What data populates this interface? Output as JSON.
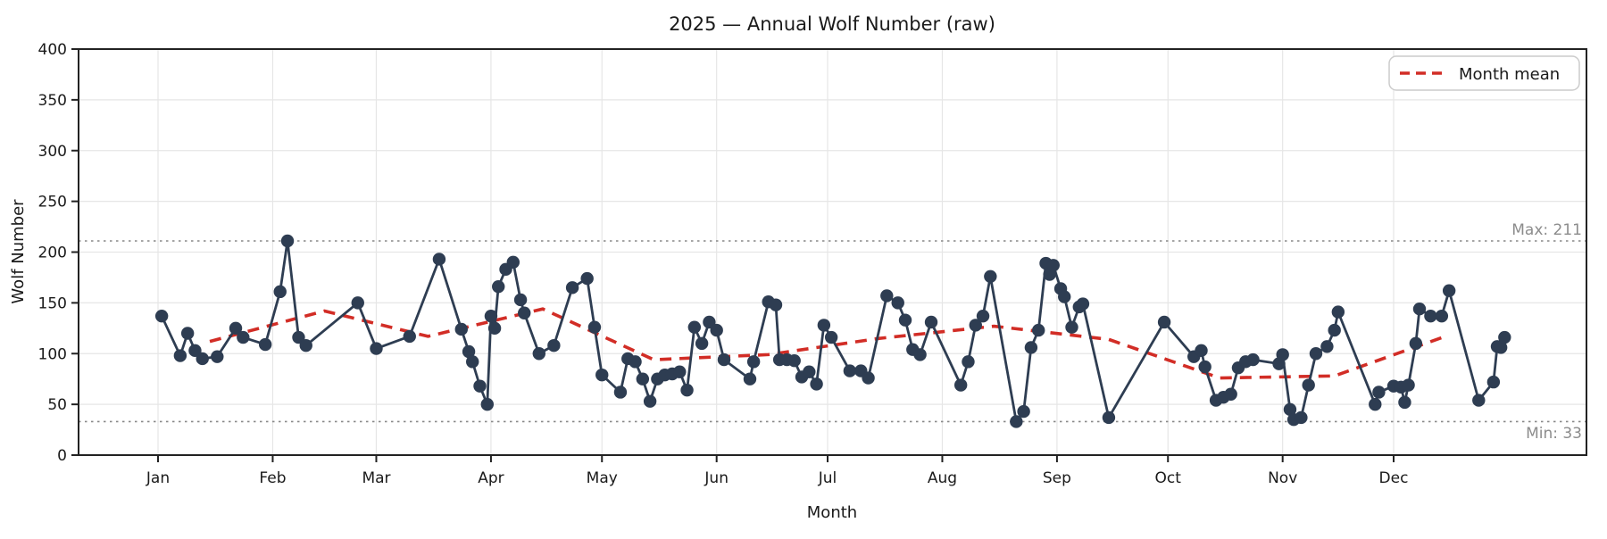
{
  "title": "2025 — Annual Wolf Number (raw)",
  "axes": {
    "xlabel": "Month",
    "ylabel": "Wolf Number",
    "yticks": [
      0,
      50,
      100,
      150,
      200,
      250,
      300,
      350,
      400
    ],
    "month_labels": [
      "Jan",
      "Feb",
      "Mar",
      "Apr",
      "May",
      "Jun",
      "Jul",
      "Aug",
      "Sep",
      "Oct",
      "Nov",
      "Dec"
    ],
    "month_start_days": [
      1,
      32,
      60,
      91,
      121,
      152,
      182,
      213,
      244,
      274,
      305,
      335
    ]
  },
  "legend": {
    "mean_label": "Month mean"
  },
  "annotations": {
    "max_label": "Max: 211",
    "min_label": "Min: 33",
    "max_value": 211,
    "min_value": 33
  },
  "colors": {
    "points": "#2e3d52",
    "line": "#2e3d52",
    "mean_line": "#d22d26",
    "grid": "#e6e6e6",
    "spine": "#222222",
    "ref_line": "#888888",
    "annot": "#8c8c8c",
    "legend_border": "#cccccc",
    "background": "#ffffff"
  },
  "chart_data": {
    "type": "line",
    "title": "2025 — Annual Wolf Number (raw)",
    "xlabel": "Month",
    "ylabel": "Wolf Number",
    "ylim": [
      0,
      400
    ],
    "x_unit": "day_of_year",
    "grid": true,
    "legend_position": "upper right",
    "points_day_value": [
      [
        2,
        137
      ],
      [
        7,
        98
      ],
      [
        9,
        120
      ],
      [
        11,
        103
      ],
      [
        13,
        95
      ],
      [
        17,
        97
      ],
      [
        22,
        125
      ],
      [
        24,
        116
      ],
      [
        30,
        109
      ],
      [
        34,
        161
      ],
      [
        36,
        211
      ],
      [
        39,
        116
      ],
      [
        41,
        108
      ],
      [
        55,
        150
      ],
      [
        60,
        105
      ],
      [
        69,
        117
      ],
      [
        77,
        193
      ],
      [
        83,
        124
      ],
      [
        85,
        102
      ],
      [
        86,
        92
      ],
      [
        88,
        68
      ],
      [
        90,
        50
      ],
      [
        91,
        137
      ],
      [
        92,
        125
      ],
      [
        93,
        166
      ],
      [
        95,
        183
      ],
      [
        97,
        190
      ],
      [
        99,
        153
      ],
      [
        100,
        140
      ],
      [
        104,
        100
      ],
      [
        108,
        108
      ],
      [
        113,
        165
      ],
      [
        117,
        174
      ],
      [
        119,
        126
      ],
      [
        121,
        79
      ],
      [
        126,
        62
      ],
      [
        128,
        95
      ],
      [
        130,
        92
      ],
      [
        132,
        75
      ],
      [
        134,
        53
      ],
      [
        136,
        75
      ],
      [
        138,
        79
      ],
      [
        140,
        80
      ],
      [
        142,
        82
      ],
      [
        144,
        64
      ],
      [
        146,
        126
      ],
      [
        148,
        110
      ],
      [
        150,
        131
      ],
      [
        152,
        123
      ],
      [
        154,
        94
      ],
      [
        161,
        75
      ],
      [
        162,
        92
      ],
      [
        166,
        151
      ],
      [
        168,
        148
      ],
      [
        169,
        94
      ],
      [
        171,
        94
      ],
      [
        173,
        93
      ],
      [
        175,
        77
      ],
      [
        177,
        82
      ],
      [
        179,
        70
      ],
      [
        181,
        128
      ],
      [
        183,
        116
      ],
      [
        188,
        83
      ],
      [
        191,
        83
      ],
      [
        193,
        76
      ],
      [
        198,
        157
      ],
      [
        201,
        150
      ],
      [
        203,
        133
      ],
      [
        205,
        104
      ],
      [
        207,
        99
      ],
      [
        210,
        131
      ],
      [
        218,
        69
      ],
      [
        220,
        92
      ],
      [
        222,
        128
      ],
      [
        224,
        137
      ],
      [
        226,
        176
      ],
      [
        233,
        33
      ],
      [
        235,
        43
      ],
      [
        237,
        106
      ],
      [
        239,
        123
      ],
      [
        241,
        189
      ],
      [
        242,
        178
      ],
      [
        243,
        187
      ],
      [
        245,
        164
      ],
      [
        246,
        156
      ],
      [
        248,
        126
      ],
      [
        250,
        146
      ],
      [
        251,
        149
      ],
      [
        258,
        37
      ],
      [
        273,
        131
      ],
      [
        281,
        97
      ],
      [
        283,
        103
      ],
      [
        284,
        87
      ],
      [
        287,
        54
      ],
      [
        289,
        57
      ],
      [
        291,
        60
      ],
      [
        293,
        86
      ],
      [
        295,
        92
      ],
      [
        297,
        94
      ],
      [
        304,
        90
      ],
      [
        305,
        99
      ],
      [
        307,
        45
      ],
      [
        308,
        35
      ],
      [
        310,
        37
      ],
      [
        312,
        69
      ],
      [
        314,
        100
      ],
      [
        317,
        107
      ],
      [
        319,
        123
      ],
      [
        320,
        141
      ],
      [
        330,
        50
      ],
      [
        331,
        62
      ],
      [
        335,
        68
      ],
      [
        337,
        67
      ],
      [
        338,
        52
      ],
      [
        339,
        69
      ],
      [
        341,
        110
      ],
      [
        342,
        144
      ],
      [
        345,
        137
      ],
      [
        348,
        137
      ],
      [
        350,
        162
      ],
      [
        358,
        54
      ],
      [
        362,
        72
      ],
      [
        363,
        107
      ],
      [
        364,
        106
      ],
      [
        365,
        116
      ]
    ],
    "month_mean": {
      "name": "Month mean",
      "days": [
        15,
        46,
        74,
        105,
        135,
        166,
        196,
        227,
        258,
        288,
        319,
        349
      ],
      "values": [
        112,
        142,
        117,
        144,
        94,
        99,
        115,
        127,
        114,
        76,
        78,
        117
      ]
    }
  }
}
